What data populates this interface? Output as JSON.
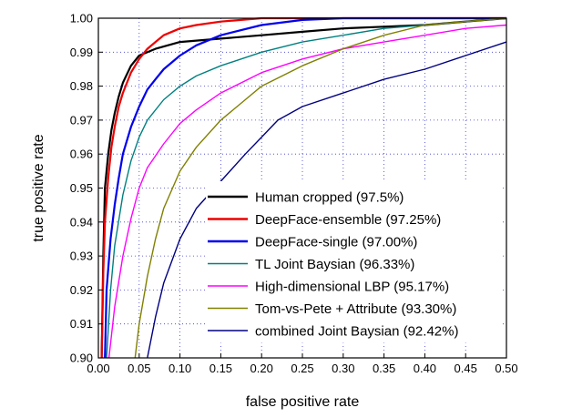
{
  "chart_data": {
    "type": "line",
    "title": "",
    "xlabel": "false positive rate",
    "ylabel": "true positive rate",
    "xlim": [
      0,
      0.5
    ],
    "ylim": [
      0.9,
      1.0
    ],
    "xticks": [
      "0.00",
      "0.05",
      "0.10",
      "0.15",
      "0.20",
      "0.25",
      "0.30",
      "0.35",
      "0.40",
      "0.45",
      "0.50"
    ],
    "yticks": [
      "0.90",
      "0.91",
      "0.92",
      "0.93",
      "0.94",
      "0.95",
      "0.96",
      "0.97",
      "0.98",
      "0.99",
      "1.00"
    ],
    "grid": true,
    "legend_position": "lower-right",
    "series": [
      {
        "name": "Human cropped (97.5%)",
        "color": "#000000",
        "x": [
          0.004,
          0.006,
          0.008,
          0.012,
          0.016,
          0.02,
          0.025,
          0.03,
          0.04,
          0.05,
          0.07,
          0.1,
          0.15,
          0.2,
          0.25,
          0.3,
          0.35,
          0.4,
          0.45,
          0.5
        ],
        "y": [
          0.9,
          0.93,
          0.95,
          0.96,
          0.967,
          0.972,
          0.977,
          0.981,
          0.986,
          0.989,
          0.991,
          0.993,
          0.994,
          0.995,
          0.996,
          0.997,
          0.9975,
          0.998,
          0.999,
          1.0
        ]
      },
      {
        "name": "DeepFace-ensemble (97.25%)",
        "color": "#ee0000",
        "x": [
          0.004,
          0.006,
          0.008,
          0.012,
          0.016,
          0.02,
          0.025,
          0.03,
          0.04,
          0.05,
          0.06,
          0.07,
          0.08,
          0.1,
          0.12,
          0.15,
          0.2,
          0.3,
          0.5
        ],
        "y": [
          0.9,
          0.925,
          0.94,
          0.953,
          0.962,
          0.968,
          0.974,
          0.978,
          0.984,
          0.988,
          0.991,
          0.993,
          0.995,
          0.997,
          0.998,
          0.999,
          1.0,
          1.0,
          1.0
        ]
      },
      {
        "name": "DeepFace-single (97.00%)",
        "color": "#0000ee",
        "x": [
          0.008,
          0.01,
          0.015,
          0.02,
          0.025,
          0.03,
          0.04,
          0.05,
          0.06,
          0.07,
          0.08,
          0.1,
          0.12,
          0.15,
          0.2,
          0.25,
          0.3,
          0.5
        ],
        "y": [
          0.9,
          0.92,
          0.935,
          0.945,
          0.953,
          0.96,
          0.968,
          0.974,
          0.979,
          0.982,
          0.985,
          0.989,
          0.992,
          0.995,
          0.998,
          0.9995,
          1.0,
          1.0
        ]
      },
      {
        "name": "TL Joint Baysian (96.33%)",
        "color": "#008080",
        "x": [
          0.01,
          0.015,
          0.02,
          0.03,
          0.04,
          0.05,
          0.06,
          0.08,
          0.1,
          0.12,
          0.15,
          0.2,
          0.25,
          0.3,
          0.35,
          0.4,
          0.45,
          0.5
        ],
        "y": [
          0.9,
          0.92,
          0.933,
          0.948,
          0.958,
          0.965,
          0.97,
          0.976,
          0.98,
          0.983,
          0.986,
          0.99,
          0.993,
          0.995,
          0.997,
          0.998,
          0.999,
          1.0
        ]
      },
      {
        "name": "High-dimensional LBP (95.17%)",
        "color": "#ff00ff",
        "x": [
          0.013,
          0.02,
          0.03,
          0.04,
          0.05,
          0.06,
          0.08,
          0.1,
          0.12,
          0.15,
          0.2,
          0.25,
          0.3,
          0.35,
          0.4,
          0.45,
          0.5
        ],
        "y": [
          0.9,
          0.915,
          0.93,
          0.941,
          0.95,
          0.956,
          0.963,
          0.969,
          0.973,
          0.978,
          0.984,
          0.988,
          0.991,
          0.993,
          0.995,
          0.997,
          0.998
        ]
      },
      {
        "name": "Tom-vs-Pete + Attribute (93.30%)",
        "color": "#808000",
        "x": [
          0.045,
          0.05,
          0.06,
          0.07,
          0.08,
          0.1,
          0.12,
          0.15,
          0.18,
          0.2,
          0.25,
          0.3,
          0.35,
          0.4,
          0.45,
          0.5
        ],
        "y": [
          0.9,
          0.91,
          0.924,
          0.935,
          0.944,
          0.955,
          0.962,
          0.97,
          0.976,
          0.98,
          0.986,
          0.991,
          0.995,
          0.998,
          0.999,
          1.0
        ]
      },
      {
        "name": "combined Joint Baysian (92.42%)",
        "color": "#000080",
        "x": [
          0.06,
          0.07,
          0.08,
          0.1,
          0.12,
          0.15,
          0.18,
          0.2,
          0.22,
          0.25,
          0.3,
          0.35,
          0.4,
          0.45,
          0.5
        ],
        "y": [
          0.9,
          0.912,
          0.922,
          0.935,
          0.944,
          0.952,
          0.96,
          0.965,
          0.97,
          0.974,
          0.978,
          0.982,
          0.985,
          0.989,
          0.993
        ]
      }
    ]
  }
}
